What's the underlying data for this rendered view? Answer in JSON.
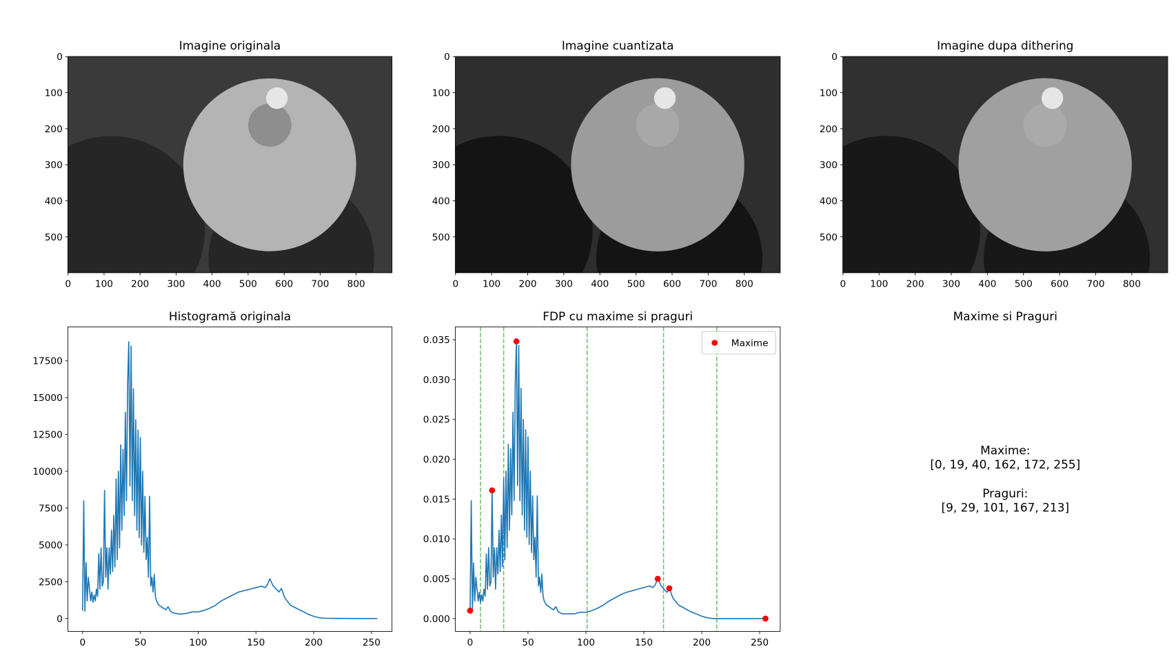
{
  "chart_data": [
    {
      "type": "image",
      "title": "Imagine originala",
      "xlim": [
        -0.5,
        899.5
      ],
      "ylim": [
        599.5,
        -0.5
      ],
      "xticks": [
        0,
        100,
        200,
        300,
        400,
        500,
        600,
        700,
        800
      ],
      "yticks": [
        0,
        100,
        200,
        300,
        400,
        500
      ]
    },
    {
      "type": "image",
      "title": "Imagine cuantizata",
      "xlim": [
        -0.5,
        899.5
      ],
      "ylim": [
        599.5,
        -0.5
      ],
      "xticks": [
        0,
        100,
        200,
        300,
        400,
        500,
        600,
        700,
        800
      ],
      "yticks": [
        0,
        100,
        200,
        300,
        400,
        500
      ]
    },
    {
      "type": "image",
      "title": "Imagine dupa dithering",
      "xlim": [
        -0.5,
        899.5
      ],
      "ylim": [
        599.5,
        -0.5
      ],
      "xticks": [
        0,
        100,
        200,
        300,
        400,
        500,
        600,
        700,
        800
      ],
      "yticks": [
        0,
        100,
        200,
        300,
        400,
        500
      ]
    },
    {
      "type": "line",
      "title": "Histogramă originala",
      "xlim": [
        -12.75,
        267.75
      ],
      "ylim": [
        -870,
        19800
      ],
      "xticks": [
        0,
        50,
        100,
        150,
        200,
        250
      ],
      "yticks": [
        0,
        2500,
        5000,
        7500,
        10000,
        12500,
        15000,
        17500
      ],
      "x": [
        0,
        1,
        2,
        3,
        4,
        5,
        6,
        7,
        8,
        9,
        10,
        11,
        12,
        13,
        14,
        15,
        16,
        17,
        18,
        19,
        20,
        21,
        22,
        23,
        24,
        25,
        26,
        27,
        28,
        29,
        30,
        31,
        32,
        33,
        34,
        35,
        36,
        37,
        38,
        39,
        40,
        41,
        42,
        43,
        44,
        45,
        46,
        47,
        48,
        49,
        50,
        51,
        52,
        53,
        54,
        55,
        56,
        57,
        58,
        59,
        60,
        61,
        62,
        63,
        64,
        66,
        68,
        70,
        72,
        74,
        76,
        78,
        80,
        85,
        90,
        95,
        100,
        105,
        110,
        115,
        120,
        125,
        130,
        135,
        140,
        145,
        150,
        155,
        158,
        160,
        162,
        165,
        170,
        172,
        175,
        180,
        185,
        190,
        195,
        200,
        205,
        210,
        220,
        230,
        240,
        255
      ],
      "series": [
        {
          "color": "#1f77b4",
          "values": [
            540,
            8000,
            500,
            3800,
            1200,
            2800,
            2000,
            1200,
            1800,
            1100,
            1600,
            1200,
            2000,
            1500,
            4400,
            2000,
            4800,
            2200,
            2500,
            8700,
            2800,
            4800,
            2000,
            4800,
            3000,
            6000,
            3200,
            7000,
            3500,
            9500,
            4000,
            10000,
            4800,
            11800,
            6000,
            11500,
            7000,
            14000,
            8000,
            16000,
            18800,
            9000,
            18500,
            8000,
            15600,
            7000,
            13500,
            6000,
            12800,
            5500,
            12300,
            5000,
            10000,
            4500,
            8300,
            4000,
            5500,
            2800,
            8300,
            2200,
            2800,
            1800,
            3000,
            1500,
            1200,
            900,
            800,
            700,
            600,
            800,
            500,
            400,
            350,
            300,
            350,
            450,
            450,
            550,
            700,
            900,
            1200,
            1400,
            1600,
            1800,
            1900,
            2000,
            2100,
            2200,
            2100,
            2300,
            2700,
            2200,
            1800,
            2050,
            1400,
            900,
            700,
            500,
            300,
            150,
            50,
            20,
            10,
            5,
            3,
            0
          ]
        }
      ]
    },
    {
      "type": "line",
      "title": "FDP cu maxime si praguri",
      "xlim": [
        -12.75,
        267.75
      ],
      "ylim": [
        -0.0016,
        0.0366
      ],
      "xticks": [
        0,
        50,
        100,
        150,
        200,
        250
      ],
      "yticks": [
        {
          "value": 0,
          "label": "0.000"
        },
        {
          "value": 0.005,
          "label": "0.005"
        },
        {
          "value": 0.01,
          "label": "0.010"
        },
        {
          "value": 0.015,
          "label": "0.015"
        },
        {
          "value": 0.02,
          "label": "0.020"
        },
        {
          "value": 0.025,
          "label": "0.025"
        },
        {
          "value": 0.03,
          "label": "0.030"
        },
        {
          "value": 0.035,
          "label": "0.035"
        }
      ],
      "x": [
        0,
        1,
        2,
        3,
        4,
        5,
        6,
        7,
        8,
        9,
        10,
        11,
        12,
        13,
        14,
        15,
        16,
        17,
        18,
        19,
        20,
        21,
        22,
        23,
        24,
        25,
        26,
        27,
        28,
        29,
        30,
        31,
        32,
        33,
        34,
        35,
        36,
        37,
        38,
        39,
        40,
        41,
        42,
        43,
        44,
        45,
        46,
        47,
        48,
        49,
        50,
        51,
        52,
        53,
        54,
        55,
        56,
        57,
        58,
        59,
        60,
        61,
        62,
        63,
        64,
        66,
        68,
        70,
        72,
        74,
        76,
        78,
        80,
        85,
        90,
        95,
        100,
        105,
        110,
        115,
        120,
        125,
        130,
        135,
        140,
        145,
        150,
        155,
        158,
        160,
        162,
        165,
        170,
        172,
        175,
        180,
        185,
        190,
        195,
        200,
        205,
        210,
        220,
        230,
        240,
        255
      ],
      "series": [
        {
          "color": "#1f77b4",
          "values": [
            0.001,
            0.0148,
            0.0009,
            0.007,
            0.0022,
            0.0052,
            0.0037,
            0.0022,
            0.0033,
            0.002,
            0.003,
            0.0022,
            0.0037,
            0.0028,
            0.0081,
            0.0037,
            0.0089,
            0.0041,
            0.0046,
            0.0161,
            0.0052,
            0.0089,
            0.0037,
            0.0089,
            0.0056,
            0.0111,
            0.0059,
            0.013,
            0.0065,
            0.0176,
            0.0074,
            0.0185,
            0.0089,
            0.0219,
            0.0111,
            0.0213,
            0.013,
            0.0259,
            0.0148,
            0.0296,
            0.0348,
            0.0167,
            0.0343,
            0.0148,
            0.0289,
            0.013,
            0.025,
            0.0111,
            0.0237,
            0.0102,
            0.0228,
            0.0093,
            0.0185,
            0.0083,
            0.0154,
            0.0074,
            0.0102,
            0.0052,
            0.0154,
            0.0041,
            0.0052,
            0.0033,
            0.0056,
            0.0028,
            0.0022,
            0.0017,
            0.0015,
            0.0013,
            0.0011,
            0.0015,
            0.0009,
            0.0007,
            0.0006,
            0.0006,
            0.0006,
            0.0008,
            0.0008,
            0.001,
            0.0013,
            0.0017,
            0.0022,
            0.0026,
            0.003,
            0.0033,
            0.0035,
            0.0037,
            0.0039,
            0.0041,
            0.0039,
            0.0043,
            0.005,
            0.0041,
            0.0033,
            0.0038,
            0.0026,
            0.0017,
            0.0013,
            0.0009,
            0.0006,
            0.0003,
            0.0001,
            0,
            0,
            0,
            0,
            0
          ]
        },
        {
          "type": "scatter",
          "name": "Maxime",
          "color": "#ff0000",
          "x": [
            0,
            19,
            40,
            162,
            172,
            255
          ],
          "values": [
            0.001,
            0.0161,
            0.0348,
            0.005,
            0.0038,
            0
          ]
        }
      ],
      "vlines": {
        "color": "#2ca02c",
        "values": [
          9,
          29,
          101,
          167,
          213
        ]
      },
      "legend": "upper right"
    },
    {
      "type": "text",
      "title": "Maxime si Praguri",
      "lines": [
        "Maxime:",
        "[0, 19, 40, 162, 172, 255]",
        "Praguri:",
        "[9, 29, 101, 167, 213]"
      ]
    }
  ]
}
